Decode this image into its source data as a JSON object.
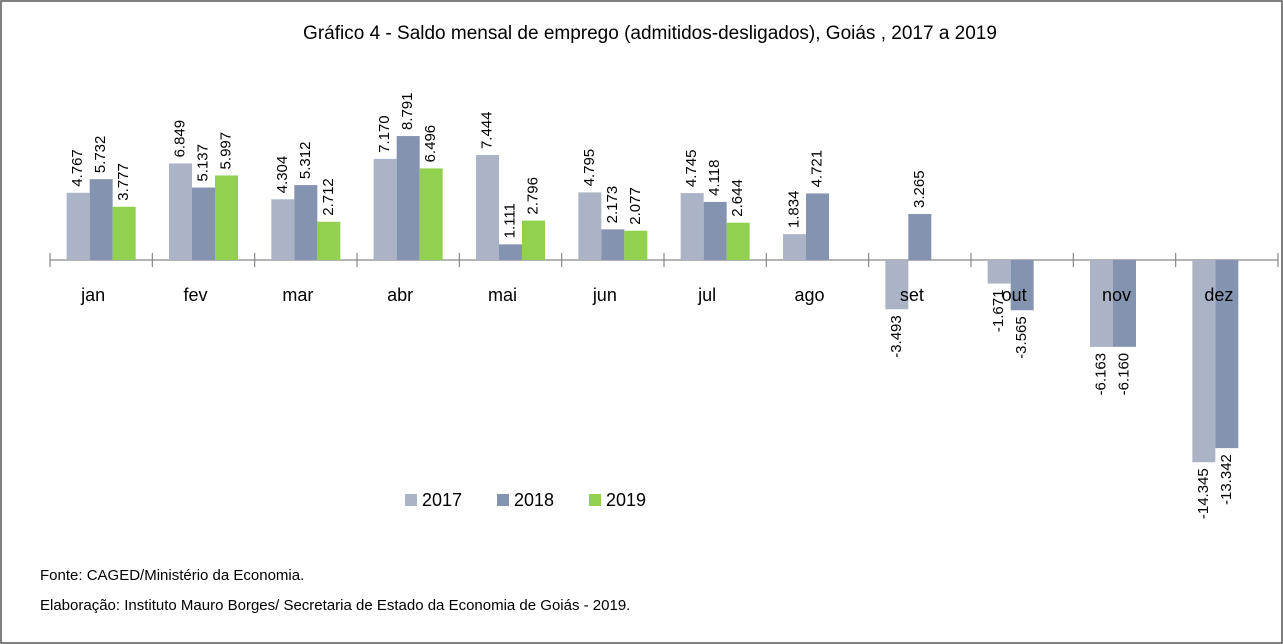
{
  "chart_data": {
    "type": "bar",
    "title": "Gráfico 4 - Saldo mensal de emprego (admitidos-desligados), Goiás , 2017 a 2019",
    "categories": [
      "jan",
      "fev",
      "mar",
      "abr",
      "mai",
      "jun",
      "jul",
      "ago",
      "set",
      "out",
      "nov",
      "dez"
    ],
    "series": [
      {
        "name": "2017",
        "color": "#aab4c6",
        "values": [
          4767,
          6849,
          4304,
          7170,
          7444,
          4795,
          4745,
          1834,
          -3493,
          -1671,
          -6163,
          -14345
        ],
        "value_labels": [
          "4.767",
          "6.849",
          "4.304",
          "7.170",
          "7.444",
          "4.795",
          "4.745",
          "1.834",
          "-3.493",
          "-1.671",
          "-6.163",
          "-14.345"
        ]
      },
      {
        "name": "2018",
        "color": "#8494b0",
        "values": [
          5732,
          5137,
          5312,
          8791,
          1111,
          2173,
          4118,
          4721,
          3265,
          -3565,
          -6160,
          -13342
        ],
        "value_labels": [
          "5.732",
          "5.137",
          "5.312",
          "8.791",
          "1.111",
          "2.173",
          "4.118",
          "4.721",
          "3.265",
          "-3.565",
          "-6.160",
          "-13.342"
        ]
      },
      {
        "name": "2019",
        "color": "#92d050",
        "values": [
          3777,
          5997,
          2712,
          6496,
          2796,
          2077,
          2644,
          null,
          null,
          null,
          null,
          null
        ],
        "value_labels": [
          "3.777",
          "5.997",
          "2.712",
          "6.496",
          "2.796",
          "2.077",
          "2.644",
          null,
          null,
          null,
          null,
          null
        ]
      }
    ],
    "legend": "bottom",
    "source": "Fonte: CAGED/Ministério da Economia.",
    "note": "Elaboração: Instituto Mauro Borges/ Secretaria de Estado da Economia de Goiás - 2019."
  }
}
